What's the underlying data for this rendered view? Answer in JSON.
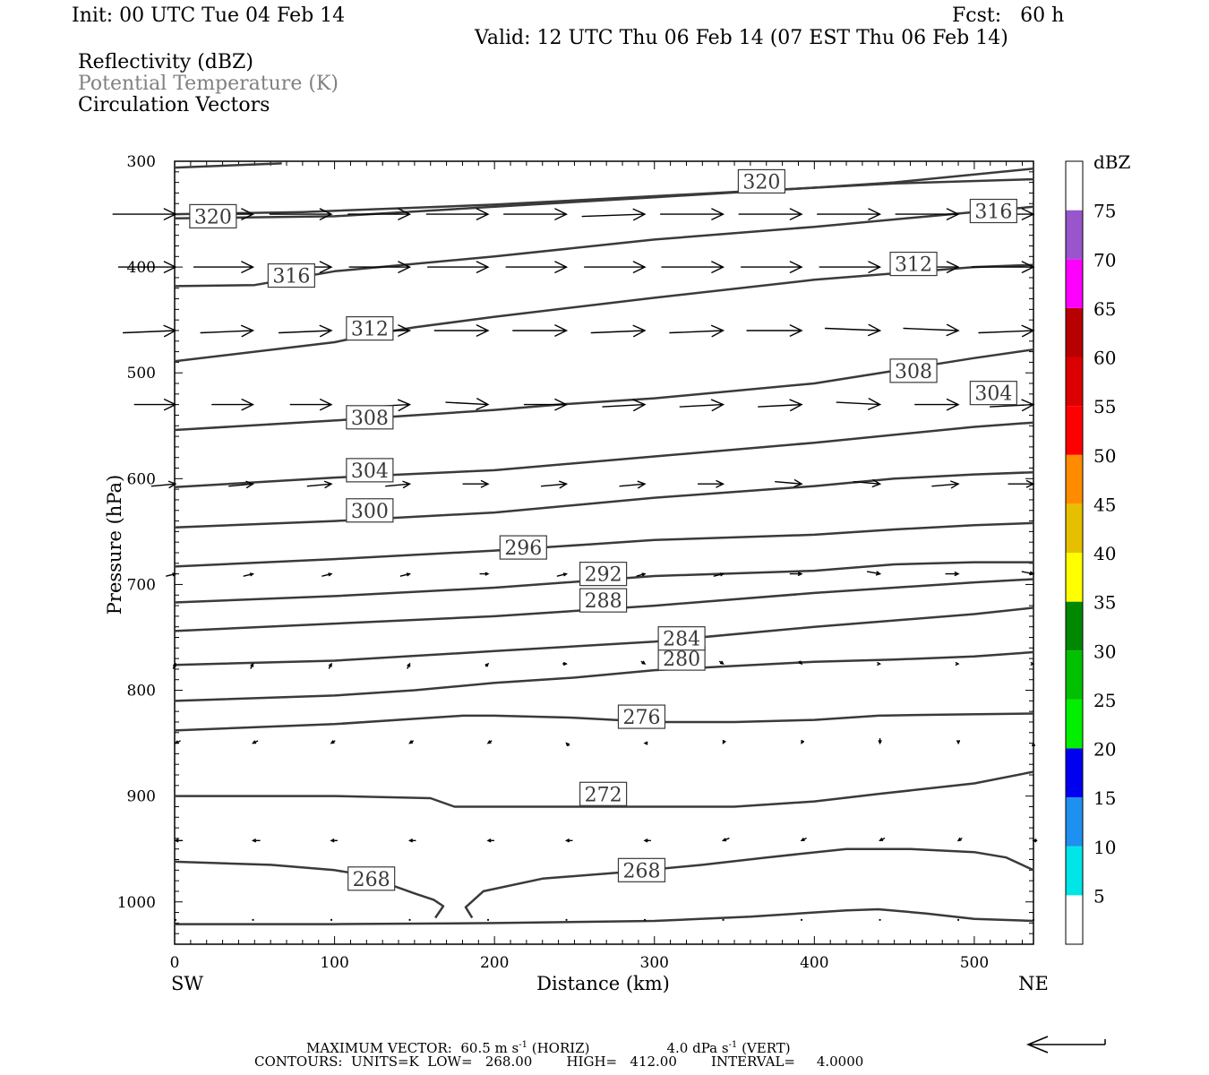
{
  "header": {
    "init": "Init: 00 UTC Tue 04 Feb 14",
    "fcst": "Fcst:   60 h",
    "valid": "Valid: 12 UTC Thu 06 Feb 14 (07 EST Thu 06 Feb 14)",
    "field1": "Reflectivity (dBZ)",
    "field2": "Potential Temperature (K)",
    "field3": "Circulation Vectors"
  },
  "colors": {
    "contour": "#3a3a3a",
    "vector": "#000000",
    "field2_text": "#808080"
  },
  "chart_data": {
    "type": "line",
    "xlabel": "Distance (km)",
    "ylabel": "Pressure (hPa)",
    "xlim": [
      0,
      537
    ],
    "ylim": [
      1040,
      300
    ],
    "y_scale": "linear, inverted",
    "xticks": [
      0,
      100,
      200,
      300,
      400,
      500
    ],
    "yticks": [
      300,
      400,
      500,
      600,
      700,
      800,
      900,
      1000
    ],
    "x_end_labels": {
      "left": "SW",
      "right": "NE"
    },
    "contours": [
      {
        "value": 268,
        "segments": [
          [
            [
              0,
              962
            ],
            [
              60,
              965
            ],
            [
              100,
              970
            ],
            [
              120,
              975
            ],
            [
              137,
              985
            ],
            [
              150,
              992
            ],
            [
              162,
              998
            ],
            [
              168,
              1004
            ],
            [
              163,
              1015
            ]
          ],
          [
            [
              186,
              1015
            ],
            [
              182,
              1005
            ],
            [
              193,
              990
            ],
            [
              230,
              978
            ],
            [
              280,
              972
            ],
            [
              330,
              965
            ],
            [
              370,
              958
            ],
            [
              420,
              950
            ],
            [
              460,
              950
            ],
            [
              500,
              953
            ],
            [
              520,
              958
            ],
            [
              537,
              970
            ]
          ],
          [
            [
              0,
              1021
            ],
            [
              100,
              1021
            ],
            [
              200,
              1020
            ],
            [
              300,
              1018
            ],
            [
              360,
              1014
            ],
            [
              420,
              1008
            ],
            [
              440,
              1007
            ],
            [
              470,
              1011
            ],
            [
              500,
              1016
            ],
            [
              537,
              1018
            ]
          ]
        ],
        "labels": [
          [
            123,
            978
          ],
          [
            292,
            970
          ]
        ]
      },
      {
        "value": 272,
        "points": [
          [
            0,
            900
          ],
          [
            100,
            900
          ],
          [
            160,
            902
          ],
          [
            175,
            910
          ],
          [
            220,
            910
          ],
          [
            280,
            910
          ],
          [
            350,
            910
          ],
          [
            400,
            905
          ],
          [
            440,
            898
          ],
          [
            500,
            888
          ],
          [
            537,
            877
          ]
        ],
        "labels": [
          [
            268,
            898
          ]
        ]
      },
      {
        "value": 276,
        "points": [
          [
            0,
            838
          ],
          [
            100,
            832
          ],
          [
            150,
            827
          ],
          [
            180,
            824
          ],
          [
            200,
            824
          ],
          [
            250,
            826
          ],
          [
            300,
            830
          ],
          [
            350,
            830
          ],
          [
            400,
            828
          ],
          [
            440,
            824
          ],
          [
            480,
            823
          ],
          [
            537,
            822
          ]
        ],
        "labels": [
          [
            292,
            825
          ]
        ]
      },
      {
        "value": 280,
        "points": [
          [
            0,
            810
          ],
          [
            100,
            805
          ],
          [
            150,
            800
          ],
          [
            200,
            793
          ],
          [
            250,
            788
          ],
          [
            300,
            781
          ],
          [
            350,
            777
          ],
          [
            400,
            773
          ],
          [
            450,
            771
          ],
          [
            500,
            768
          ],
          [
            537,
            764
          ]
        ],
        "labels": [
          [
            317,
            770
          ]
        ]
      },
      {
        "value": 284,
        "points": [
          [
            0,
            776
          ],
          [
            100,
            772
          ],
          [
            200,
            763
          ],
          [
            300,
            754
          ],
          [
            400,
            740
          ],
          [
            450,
            734
          ],
          [
            500,
            728
          ],
          [
            537,
            722
          ]
        ],
        "labels": [
          [
            317,
            751
          ]
        ]
      },
      {
        "value": 288,
        "points": [
          [
            0,
            744
          ],
          [
            100,
            737
          ],
          [
            200,
            730
          ],
          [
            300,
            720
          ],
          [
            400,
            708
          ],
          [
            500,
            698
          ],
          [
            537,
            695
          ]
        ],
        "labels": [
          [
            268,
            715
          ]
        ]
      },
      {
        "value": 292,
        "points": [
          [
            0,
            717
          ],
          [
            100,
            711
          ],
          [
            200,
            703
          ],
          [
            300,
            692
          ],
          [
            400,
            687
          ],
          [
            450,
            681
          ],
          [
            500,
            679
          ],
          [
            537,
            679
          ]
        ],
        "labels": [
          [
            268,
            690
          ]
        ]
      },
      {
        "value": 296,
        "points": [
          [
            0,
            683
          ],
          [
            100,
            676
          ],
          [
            200,
            668
          ],
          [
            260,
            662
          ],
          [
            300,
            658
          ],
          [
            400,
            653
          ],
          [
            450,
            648
          ],
          [
            500,
            644
          ],
          [
            537,
            642
          ]
        ],
        "labels": [
          [
            218,
            665
          ]
        ]
      },
      {
        "value": 300,
        "points": [
          [
            0,
            646
          ],
          [
            100,
            640
          ],
          [
            200,
            632
          ],
          [
            300,
            618
          ],
          [
            400,
            607
          ],
          [
            450,
            600
          ],
          [
            500,
            596
          ],
          [
            537,
            594
          ]
        ],
        "labels": [
          [
            122,
            630
          ]
        ]
      },
      {
        "value": 304,
        "points": [
          [
            0,
            608
          ],
          [
            100,
            599
          ],
          [
            200,
            592
          ],
          [
            300,
            579
          ],
          [
            400,
            566
          ],
          [
            500,
            551
          ],
          [
            537,
            547
          ]
        ],
        "labels": [
          [
            122,
            592
          ],
          [
            512,
            519
          ]
        ]
      },
      {
        "value": 308,
        "points": [
          [
            0,
            554
          ],
          [
            100,
            545
          ],
          [
            200,
            535
          ],
          [
            240,
            530
          ],
          [
            300,
            524
          ],
          [
            400,
            510
          ],
          [
            450,
            498
          ],
          [
            500,
            486
          ],
          [
            537,
            478
          ]
        ],
        "labels": [
          [
            122,
            542
          ],
          [
            462,
            498
          ]
        ]
      },
      {
        "value": 312,
        "points": [
          [
            0,
            489
          ],
          [
            100,
            471
          ],
          [
            122,
            464
          ],
          [
            150,
            457
          ],
          [
            200,
            447
          ],
          [
            300,
            429
          ],
          [
            400,
            412
          ],
          [
            500,
            400
          ],
          [
            537,
            398
          ]
        ],
        "labels": [
          [
            122,
            458
          ],
          [
            462,
            397
          ]
        ]
      },
      {
        "value": 316,
        "points": [
          [
            0,
            418
          ],
          [
            50,
            417
          ],
          [
            100,
            404
          ],
          [
            200,
            390
          ],
          [
            300,
            374
          ],
          [
            400,
            362
          ],
          [
            500,
            348
          ],
          [
            537,
            343
          ]
        ],
        "labels": [
          [
            73,
            408
          ],
          [
            512,
            347
          ]
        ]
      },
      {
        "value": 320,
        "segments": [
          [
            [
              0,
              306
            ],
            [
              67,
              302
            ]
          ],
          [
            [
              0,
              350
            ],
            [
              80,
              348
            ],
            [
              200,
              341
            ],
            [
              350,
              329
            ],
            [
              450,
              321
            ],
            [
              537,
              317
            ]
          ],
          [
            [
              0,
              354
            ],
            [
              100,
              352
            ],
            [
              200,
              343
            ],
            [
              300,
              334
            ],
            [
              400,
              325
            ],
            [
              450,
              320
            ],
            [
              537,
              307
            ]
          ]
        ],
        "labels": [
          [
            24,
            352
          ],
          [
            367,
            319
          ]
        ]
      }
    ],
    "vectors": {
      "x": [
        0,
        49,
        98,
        147,
        196,
        245,
        294,
        343,
        392,
        441,
        490,
        537
      ],
      "rows": [
        {
          "p": 350,
          "u": [
            55,
            54,
            54,
            54,
            54,
            55,
            55,
            55,
            55,
            55,
            55,
            54
          ],
          "w": [
            0,
            0,
            0,
            0,
            0,
            0,
            -1,
            0,
            0,
            0,
            0,
            0
          ]
        },
        {
          "p": 400,
          "u": [
            50,
            52,
            53,
            53,
            53,
            53,
            53,
            54,
            53,
            53,
            52,
            54
          ],
          "w": [
            0,
            0,
            0,
            0,
            0,
            0,
            0,
            0,
            0,
            0,
            0,
            0
          ]
        },
        {
          "p": 460,
          "u": [
            46,
            46,
            46,
            47,
            47,
            47,
            47,
            47,
            48,
            48,
            48,
            48
          ],
          "w": [
            -1,
            -1,
            -1,
            0,
            0,
            0,
            -1,
            -1,
            0,
            1,
            1,
            -1
          ]
        },
        {
          "p": 530,
          "u": [
            36,
            36,
            36,
            37,
            37,
            37,
            37,
            38,
            38,
            38,
            38,
            38
          ],
          "w": [
            0,
            0,
            0,
            -1,
            1,
            0,
            -1,
            -1,
            -1,
            1,
            0,
            -1
          ]
        },
        {
          "p": 605,
          "u": [
            21,
            21,
            21,
            21,
            22,
            22,
            22,
            22,
            23,
            23,
            23,
            22
          ],
          "w": [
            -1,
            -1,
            -1,
            -1,
            0,
            -1,
            -1,
            0,
            1,
            1,
            -1,
            0
          ]
        },
        {
          "p": 690,
          "u": [
            8,
            8,
            8,
            8,
            7,
            8,
            7,
            8,
            10,
            11,
            11,
            10
          ],
          "w": [
            -1,
            -1,
            -1,
            -1,
            0,
            -1,
            -1,
            -1,
            0,
            1,
            0,
            1
          ]
        },
        {
          "p": 775,
          "u": [
            2,
            2,
            2,
            2,
            2,
            3,
            3,
            3,
            2,
            1,
            1,
            1
          ],
          "w": [
            -2,
            -2,
            -2,
            -2,
            -1,
            0,
            1,
            1,
            1,
            0,
            0,
            0
          ]
        },
        {
          "p": 850,
          "u": [
            -4,
            -4,
            -3,
            -3,
            -3,
            -2,
            -2,
            -1,
            -1,
            0,
            0,
            0
          ],
          "w": [
            1,
            1,
            1,
            1,
            1,
            -1,
            0,
            1,
            1,
            2,
            1,
            -1
          ]
        },
        {
          "p": 942,
          "u": [
            -6,
            -6,
            -5,
            -5,
            -5,
            -5,
            -5,
            -5,
            -4,
            -4,
            -3,
            -3
          ],
          "w": [
            0,
            0,
            0,
            0,
            0,
            0,
            0,
            1,
            1,
            1,
            1,
            0
          ]
        },
        {
          "p": 1017,
          "u": [
            0,
            0,
            0,
            0,
            0,
            0,
            0,
            0,
            0,
            0,
            0,
            0
          ],
          "w": [
            0,
            0,
            0,
            0,
            0,
            0,
            0,
            0,
            0,
            0,
            0,
            0
          ]
        }
      ]
    },
    "colorbar": {
      "title": "dBZ",
      "labels": [
        5,
        10,
        15,
        20,
        25,
        30,
        35,
        40,
        45,
        50,
        55,
        60,
        65,
        70,
        75
      ],
      "bands": [
        {
          "from": 0,
          "to": 5,
          "color": "#ffffff"
        },
        {
          "from": 5,
          "to": 10,
          "color": "#00e5e5"
        },
        {
          "from": 10,
          "to": 15,
          "color": "#1e90ef"
        },
        {
          "from": 15,
          "to": 20,
          "color": "#0000f0"
        },
        {
          "from": 20,
          "to": 25,
          "color": "#00f000"
        },
        {
          "from": 25,
          "to": 30,
          "color": "#00c000"
        },
        {
          "from": 30,
          "to": 35,
          "color": "#008800"
        },
        {
          "from": 35,
          "to": 40,
          "color": "#ffff00"
        },
        {
          "from": 40,
          "to": 45,
          "color": "#e6c000"
        },
        {
          "from": 45,
          "to": 50,
          "color": "#ff8c00"
        },
        {
          "from": 50,
          "to": 55,
          "color": "#ff0000"
        },
        {
          "from": 55,
          "to": 60,
          "color": "#dd0000"
        },
        {
          "from": 60,
          "to": 65,
          "color": "#b80000"
        },
        {
          "from": 65,
          "to": 70,
          "color": "#ff00ff"
        },
        {
          "from": 70,
          "to": 75,
          "color": "#9955cc"
        },
        {
          "from": 75,
          "to": 80,
          "color": "#ffffff"
        }
      ]
    }
  },
  "footer": {
    "max_vector_prefix": "MAXIMUM VECTOR:  60.5 m s",
    "horiz_suffix": " (HORIZ)",
    "vert_value": "4.0 dPa s",
    "vert_suffix": " (VERT)",
    "exp": "-1",
    "contours_line": "CONTOURS:  UNITS=K  LOW=   268.00        HIGH=   412.00        INTERVAL=     4.0000"
  }
}
